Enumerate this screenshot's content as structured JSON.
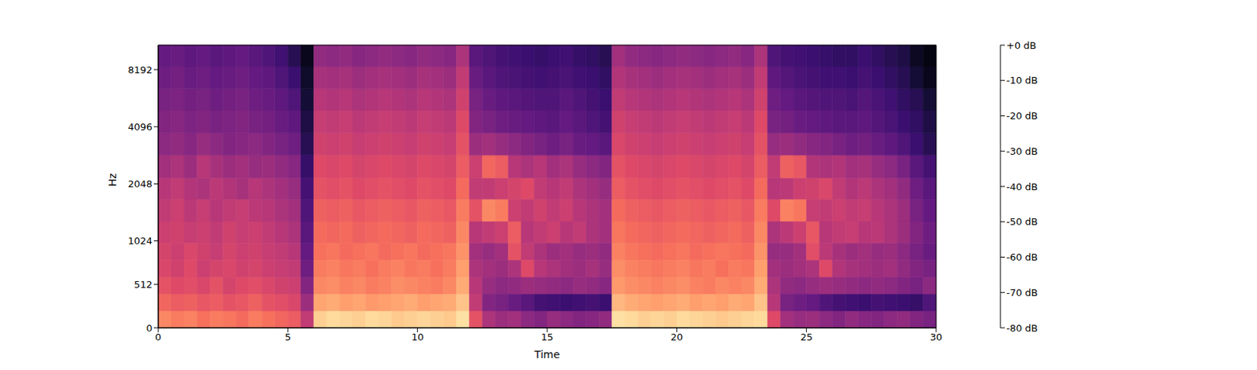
{
  "chart_data": {
    "type": "heatmap",
    "xlabel": "Time",
    "ylabel": "Hz",
    "xlim": [
      0,
      30
    ],
    "xticks": [
      0,
      5,
      10,
      15,
      20,
      25,
      30
    ],
    "ylim": [
      0,
      11025
    ],
    "yticks": [
      0,
      512,
      1024,
      2048,
      4096,
      8192
    ],
    "x_bins": [
      0,
      0.5,
      1,
      1.5,
      2,
      2.5,
      3,
      3.5,
      4,
      4.5,
      5,
      5.5,
      6,
      6.5,
      7,
      7.5,
      8,
      8.5,
      9,
      9.5,
      10,
      10.5,
      11,
      11.5,
      12,
      12.5,
      13,
      13.5,
      14,
      14.5,
      15,
      15.5,
      16,
      16.5,
      17,
      17.5,
      18,
      18.5,
      19,
      19.5,
      20,
      20.5,
      21,
      21.5,
      22,
      22.5,
      23,
      23.5,
      24,
      24.5,
      25,
      25.5,
      26,
      26.5,
      27,
      27.5,
      28,
      28.5,
      29,
      29.5,
      30
    ],
    "y_bins": [
      0,
      200,
      400,
      600,
      800,
      1000,
      1300,
      1700,
      2200,
      2900,
      3800,
      5000,
      6500,
      8500,
      11025
    ],
    "cells": [
      [
        -20,
        -22,
        -21,
        -24,
        -22,
        -23,
        -25,
        -22,
        -24,
        -26,
        -28,
        -38,
        -8,
        -6,
        -7,
        -8,
        -6,
        -7,
        -9,
        -8,
        -7,
        -8,
        -9,
        -5,
        -30,
        -42,
        -45,
        -44,
        -48,
        -50,
        -46,
        -48,
        -50,
        -49,
        -47,
        -5,
        -6,
        -8,
        -7,
        -8,
        -6,
        -7,
        -8,
        -9,
        -8,
        -7,
        -6,
        -32,
        -44,
        -46,
        -45,
        -48,
        -50,
        -47,
        -49,
        -50,
        -48,
        -47,
        -50,
        -52
      ],
      [
        -26,
        -28,
        -27,
        -29,
        -28,
        -30,
        -29,
        -27,
        -30,
        -31,
        -33,
        -45,
        -15,
        -14,
        -16,
        -15,
        -17,
        -16,
        -15,
        -14,
        -16,
        -15,
        -14,
        -10,
        -38,
        -50,
        -52,
        -55,
        -58,
        -62,
        -63,
        -64,
        -63,
        -62,
        -64,
        -12,
        -14,
        -15,
        -16,
        -15,
        -14,
        -16,
        -15,
        -16,
        -14,
        -15,
        -10,
        -40,
        -52,
        -54,
        -56,
        -60,
        -62,
        -63,
        -64,
        -62,
        -63,
        -64,
        -65,
        -60
      ],
      [
        -30,
        -32,
        -31,
        -33,
        -30,
        -34,
        -32,
        -31,
        -33,
        -35,
        -36,
        -50,
        -20,
        -19,
        -21,
        -20,
        -22,
        -21,
        -19,
        -20,
        -21,
        -22,
        -20,
        -14,
        -40,
        -46,
        -48,
        -47,
        -45,
        -46,
        -47,
        -48,
        -46,
        -47,
        -49,
        -17,
        -19,
        -20,
        -21,
        -20,
        -19,
        -21,
        -22,
        -20,
        -21,
        -20,
        -14,
        -42,
        -47,
        -48,
        -46,
        -45,
        -46,
        -47,
        -48,
        -47,
        -48,
        -50,
        -52,
        -48
      ],
      [
        -33,
        -35,
        -32,
        -36,
        -34,
        -33,
        -35,
        -34,
        -36,
        -37,
        -38,
        -54,
        -22,
        -21,
        -23,
        -22,
        -24,
        -22,
        -21,
        -23,
        -22,
        -24,
        -22,
        -16,
        -42,
        -44,
        -45,
        -42,
        -32,
        -40,
        -42,
        -44,
        -45,
        -43,
        -46,
        -19,
        -21,
        -22,
        -23,
        -22,
        -21,
        -23,
        -22,
        -24,
        -22,
        -23,
        -16,
        -44,
        -45,
        -44,
        -42,
        -32,
        -41,
        -43,
        -44,
        -45,
        -44,
        -47,
        -50,
        -52
      ],
      [
        -34,
        -36,
        -33,
        -35,
        -37,
        -34,
        -36,
        -35,
        -37,
        -38,
        -40,
        -56,
        -24,
        -23,
        -25,
        -24,
        -23,
        -25,
        -24,
        -23,
        -25,
        -24,
        -23,
        -18,
        -44,
        -46,
        -44,
        -30,
        -38,
        -42,
        -45,
        -44,
        -46,
        -45,
        -47,
        -21,
        -23,
        -24,
        -25,
        -24,
        -23,
        -25,
        -24,
        -23,
        -24,
        -25,
        -18,
        -46,
        -46,
        -44,
        -31,
        -39,
        -43,
        -45,
        -44,
        -46,
        -45,
        -48,
        -52,
        -55
      ],
      [
        -36,
        -35,
        -37,
        -36,
        -38,
        -35,
        -37,
        -36,
        -38,
        -40,
        -42,
        -58,
        -25,
        -26,
        -25,
        -27,
        -26,
        -25,
        -26,
        -27,
        -25,
        -26,
        -27,
        -20,
        -40,
        -38,
        -36,
        -28,
        -40,
        -38,
        -36,
        -40,
        -38,
        -42,
        -44,
        -23,
        -25,
        -26,
        -27,
        -26,
        -25,
        -26,
        -27,
        -26,
        -25,
        -27,
        -20,
        -42,
        -39,
        -36,
        -29,
        -40,
        -38,
        -37,
        -40,
        -39,
        -42,
        -45,
        -50,
        -54
      ],
      [
        -38,
        -36,
        -39,
        -37,
        -40,
        -38,
        -37,
        -39,
        -40,
        -42,
        -44,
        -60,
        -27,
        -28,
        -27,
        -29,
        -28,
        -27,
        -28,
        -29,
        -27,
        -28,
        -29,
        -22,
        -30,
        -20,
        -22,
        -36,
        -38,
        -35,
        -38,
        -36,
        -40,
        -42,
        -44,
        -25,
        -27,
        -28,
        -29,
        -28,
        -27,
        -28,
        -29,
        -28,
        -27,
        -29,
        -22,
        -32,
        -21,
        -23,
        -37,
        -38,
        -36,
        -38,
        -37,
        -40,
        -42,
        -45,
        -52,
        -56
      ],
      [
        -40,
        -38,
        -41,
        -42,
        -39,
        -41,
        -43,
        -40,
        -42,
        -44,
        -46,
        -62,
        -30,
        -31,
        -30,
        -32,
        -31,
        -30,
        -31,
        -32,
        -30,
        -31,
        -32,
        -25,
        -38,
        -38,
        -36,
        -34,
        -32,
        -38,
        -40,
        -38,
        -42,
        -44,
        -46,
        -28,
        -30,
        -31,
        -32,
        -31,
        -30,
        -31,
        -32,
        -31,
        -30,
        -32,
        -25,
        -40,
        -39,
        -36,
        -35,
        -33,
        -38,
        -41,
        -39,
        -42,
        -44,
        -47,
        -54,
        -58
      ],
      [
        -44,
        -42,
        -45,
        -40,
        -43,
        -45,
        -44,
        -46,
        -45,
        -47,
        -49,
        -65,
        -32,
        -33,
        -32,
        -34,
        -33,
        -32,
        -33,
        -34,
        -32,
        -33,
        -34,
        -28,
        -36,
        -26,
        -28,
        -40,
        -42,
        -40,
        -44,
        -42,
        -46,
        -48,
        -50,
        -30,
        -32,
        -33,
        -34,
        -33,
        -32,
        -33,
        -34,
        -33,
        -32,
        -34,
        -28,
        -38,
        -27,
        -29,
        -41,
        -42,
        -41,
        -44,
        -43,
        -46,
        -48,
        -52,
        -58,
        -62
      ],
      [
        -48,
        -47,
        -49,
        -46,
        -48,
        -50,
        -49,
        -48,
        -50,
        -52,
        -54,
        -68,
        -35,
        -36,
        -35,
        -37,
        -36,
        -35,
        -36,
        -37,
        -35,
        -36,
        -37,
        -30,
        -45,
        -44,
        -46,
        -48,
        -50,
        -52,
        -54,
        -52,
        -55,
        -56,
        -58,
        -33,
        -35,
        -36,
        -37,
        -36,
        -35,
        -36,
        -37,
        -36,
        -35,
        -37,
        -30,
        -46,
        -45,
        -47,
        -49,
        -50,
        -52,
        -54,
        -53,
        -55,
        -57,
        -60,
        -64,
        -68
      ],
      [
        -50,
        -49,
        -51,
        -50,
        -52,
        -51,
        -50,
        -52,
        -53,
        -55,
        -57,
        -70,
        -37,
        -38,
        -37,
        -39,
        -38,
        -37,
        -38,
        -39,
        -37,
        -38,
        -39,
        -32,
        -50,
        -52,
        -54,
        -55,
        -56,
        -57,
        -58,
        -56,
        -58,
        -60,
        -62,
        -35,
        -37,
        -38,
        -39,
        -38,
        -37,
        -38,
        -39,
        -38,
        -37,
        -39,
        -32,
        -52,
        -53,
        -55,
        -56,
        -57,
        -58,
        -58,
        -57,
        -59,
        -61,
        -64,
        -66,
        -70
      ],
      [
        -52,
        -51,
        -53,
        -52,
        -54,
        -53,
        -52,
        -54,
        -55,
        -57,
        -60,
        -72,
        -40,
        -41,
        -40,
        -42,
        -41,
        -40,
        -41,
        -42,
        -40,
        -41,
        -42,
        -35,
        -52,
        -55,
        -57,
        -58,
        -59,
        -60,
        -60,
        -58,
        -60,
        -62,
        -64,
        -38,
        -40,
        -41,
        -42,
        -41,
        -40,
        -41,
        -42,
        -41,
        -40,
        -42,
        -35,
        -54,
        -56,
        -58,
        -59,
        -60,
        -60,
        -61,
        -59,
        -61,
        -63,
        -66,
        -68,
        -72
      ],
      [
        -54,
        -53,
        -55,
        -54,
        -56,
        -55,
        -54,
        -56,
        -57,
        -60,
        -64,
        -74,
        -43,
        -44,
        -43,
        -45,
        -44,
        -43,
        -44,
        -45,
        -43,
        -44,
        -45,
        -38,
        -55,
        -58,
        -60,
        -61,
        -62,
        -63,
        -62,
        -61,
        -63,
        -64,
        -66,
        -41,
        -43,
        -44,
        -45,
        -44,
        -43,
        -44,
        -45,
        -44,
        -43,
        -45,
        -38,
        -57,
        -59,
        -61,
        -62,
        -63,
        -63,
        -64,
        -62,
        -64,
        -66,
        -68,
        -72,
        -76
      ],
      [
        -56,
        -55,
        -57,
        -56,
        -58,
        -57,
        -56,
        -58,
        -60,
        -63,
        -68,
        -76,
        -47,
        -48,
        -47,
        -49,
        -48,
        -47,
        -48,
        -49,
        -47,
        -48,
        -49,
        -42,
        -58,
        -60,
        -62,
        -63,
        -64,
        -65,
        -64,
        -63,
        -65,
        -66,
        -68,
        -44,
        -47,
        -48,
        -49,
        -48,
        -47,
        -48,
        -49,
        -48,
        -47,
        -49,
        -42,
        -60,
        -62,
        -63,
        -64,
        -65,
        -66,
        -66,
        -64,
        -66,
        -68,
        -70,
        -75,
        -78
      ]
    ],
    "colorbar": {
      "range": [
        -80,
        0
      ],
      "ticks": [
        {
          "value": 0,
          "label": "+0 dB"
        },
        {
          "value": -10,
          "label": "-10 dB"
        },
        {
          "value": -20,
          "label": "-20 dB"
        },
        {
          "value": -30,
          "label": "-30 dB"
        },
        {
          "value": -40,
          "label": "-40 dB"
        },
        {
          "value": -50,
          "label": "-50 dB"
        },
        {
          "value": -60,
          "label": "-60 dB"
        },
        {
          "value": -70,
          "label": "-70 dB"
        },
        {
          "value": -80,
          "label": "-80 dB"
        }
      ]
    }
  }
}
